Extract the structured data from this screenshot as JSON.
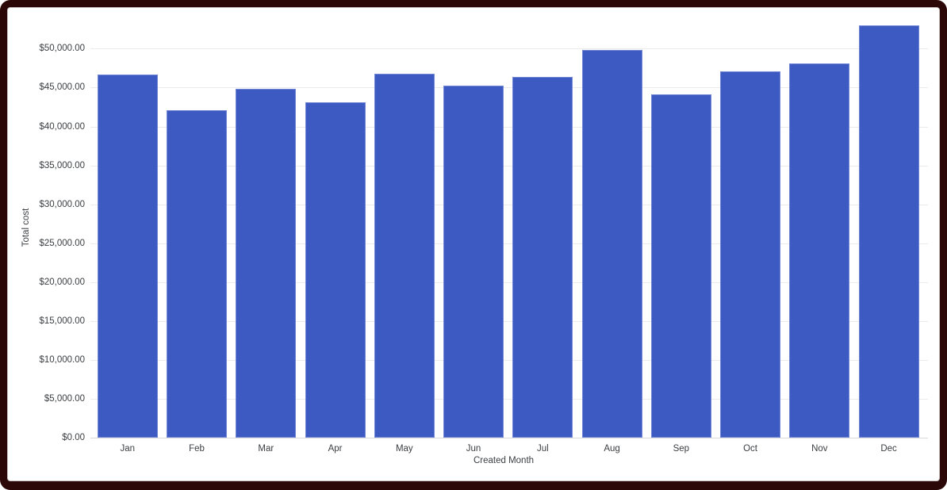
{
  "frame": {
    "border_color": "#2b0707",
    "card_background": "#ffffff"
  },
  "chart_data": {
    "type": "bar",
    "title": "",
    "xlabel": "Created Month",
    "ylabel": "Total cost",
    "categories": [
      "Jan",
      "Feb",
      "Mar",
      "Apr",
      "May",
      "Jun",
      "Jul",
      "Aug",
      "Sep",
      "Oct",
      "Nov",
      "Dec"
    ],
    "values": [
      46700,
      42100,
      44800,
      43100,
      46800,
      45300,
      46400,
      49800,
      44100,
      47100,
      48100,
      53000
    ],
    "y_ticks": [
      {
        "value": 0,
        "label": "$0.00"
      },
      {
        "value": 5000,
        "label": "$5,000.00"
      },
      {
        "value": 10000,
        "label": "$10,000.00"
      },
      {
        "value": 15000,
        "label": "$15,000.00"
      },
      {
        "value": 20000,
        "label": "$20,000.00"
      },
      {
        "value": 25000,
        "label": "$25,000.00"
      },
      {
        "value": 30000,
        "label": "$30,000.00"
      },
      {
        "value": 35000,
        "label": "$35,000.00"
      },
      {
        "value": 40000,
        "label": "$40,000.00"
      },
      {
        "value": 45000,
        "label": "$45,000.00"
      },
      {
        "value": 50000,
        "label": "$50,000.00"
      }
    ],
    "ylim": [
      0,
      54000
    ],
    "grid": true,
    "legend": "none",
    "bar_color": "#3d5ac2",
    "bar_stroke_color": "#7187d6",
    "gridline_color": "#ebebeb",
    "baseline_color": "#d9d9d9",
    "text_color": "#3c4043"
  }
}
